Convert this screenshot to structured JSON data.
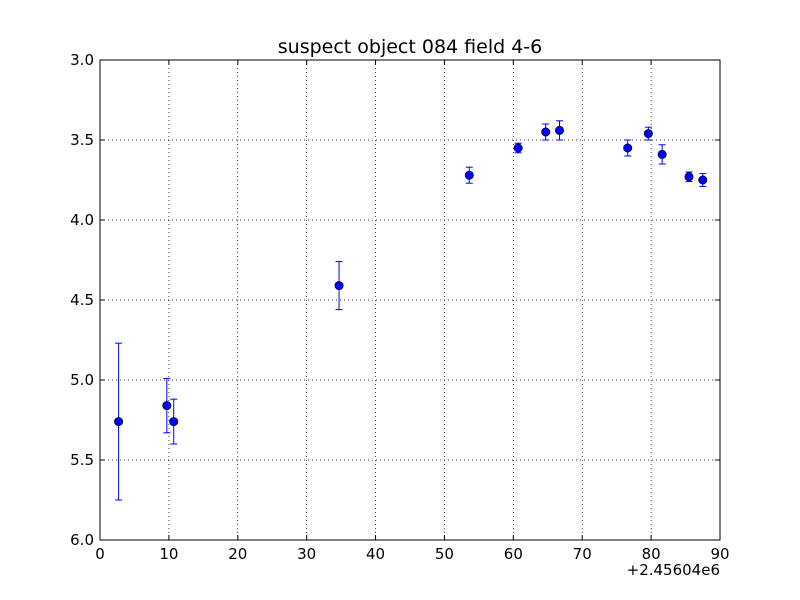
{
  "chart_data": {
    "type": "scatter",
    "title": "suspect object 084 field 4-6",
    "xlabel": "",
    "ylabel": "",
    "x_offset_label": "+2.45604e6",
    "xlim": [
      0,
      90
    ],
    "ylim": [
      6.0,
      3.0
    ],
    "y_inverted": true,
    "grid": true,
    "x_ticks": [
      0,
      10,
      20,
      30,
      40,
      50,
      60,
      70,
      80,
      90
    ],
    "x_tick_labels": [
      "0",
      "10",
      "20",
      "30",
      "40",
      "50",
      "60",
      "70",
      "80",
      "90"
    ],
    "y_ticks": [
      3.0,
      3.5,
      4.0,
      4.5,
      5.0,
      5.5,
      6.0
    ],
    "y_tick_labels": [
      "3.0",
      "3.5",
      "4.0",
      "4.5",
      "5.0",
      "5.5",
      "6.0"
    ],
    "marker_color": "#0000ff",
    "points": [
      {
        "x": 2.7,
        "y": 5.26,
        "err": 0.49
      },
      {
        "x": 9.7,
        "y": 5.16,
        "err": 0.17
      },
      {
        "x": 10.7,
        "y": 5.26,
        "err": 0.14
      },
      {
        "x": 34.7,
        "y": 4.41,
        "err": 0.15
      },
      {
        "x": 53.6,
        "y": 3.72,
        "err": 0.05
      },
      {
        "x": 60.7,
        "y": 3.55,
        "err": 0.03
      },
      {
        "x": 64.7,
        "y": 3.45,
        "err": 0.05
      },
      {
        "x": 66.7,
        "y": 3.44,
        "err": 0.06
      },
      {
        "x": 76.6,
        "y": 3.55,
        "err": 0.05
      },
      {
        "x": 79.6,
        "y": 3.46,
        "err": 0.04
      },
      {
        "x": 81.6,
        "y": 3.59,
        "err": 0.06
      },
      {
        "x": 85.5,
        "y": 3.73,
        "err": 0.03
      },
      {
        "x": 87.5,
        "y": 3.75,
        "err": 0.04
      }
    ]
  }
}
